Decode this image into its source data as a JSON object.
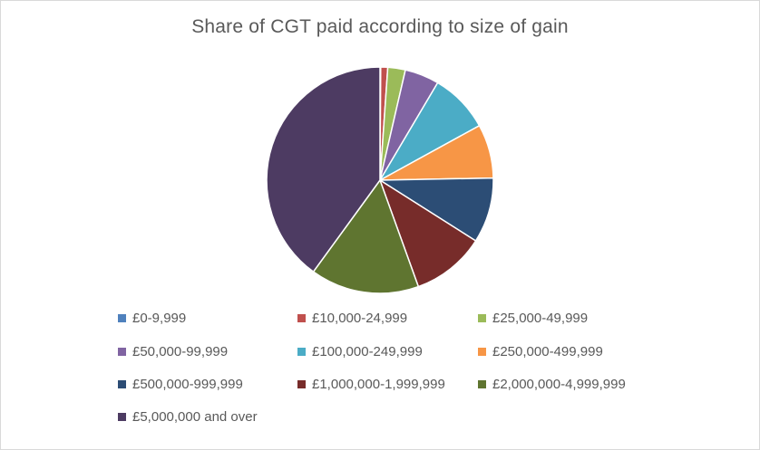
{
  "chart_data": {
    "type": "pie",
    "title": "Share of CGT paid according to size of gain",
    "legend_position": "bottom",
    "categories": [
      "£0-9,999",
      "£10,000-24,999",
      "£25,000-49,999",
      "£50,000-99,999",
      "£100,000-249,999",
      "£250,000-499,999",
      "£500,000-999,999",
      "£1,000,000-1,999,999",
      "£2,000,000-4,999,999",
      "£5,000,000 and over"
    ],
    "values": [
      0.1,
      1.0,
      2.5,
      4.9,
      8.5,
      7.7,
      9.3,
      10.5,
      15.5,
      40.0
    ],
    "colors": [
      "#4f81bd",
      "#c0504d",
      "#9bbb59",
      "#8064a2",
      "#4bacc6",
      "#f79646",
      "#2c4d75",
      "#772c2a",
      "#5f7530",
      "#4d3b62"
    ]
  }
}
